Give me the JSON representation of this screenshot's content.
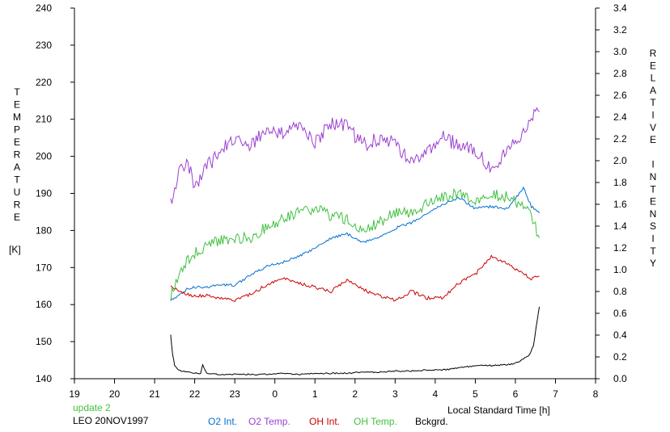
{
  "chart_data": {
    "type": "line",
    "title": "",
    "xlabel": "Local Standard Time [h]",
    "x_ticks": [
      "19",
      "20",
      "21",
      "22",
      "23",
      "0",
      "1",
      "2",
      "3",
      "4",
      "5",
      "6",
      "7",
      "8"
    ],
    "xlim_hours": [
      19,
      32
    ],
    "left_axis": {
      "label_letters": [
        "T",
        "E",
        "M",
        "P",
        "E",
        "R",
        "A",
        "T",
        "U",
        "R",
        "E"
      ],
      "unit": "[K]",
      "ylim": [
        140,
        240
      ],
      "ticks": [
        "140",
        "150",
        "160",
        "170",
        "180",
        "190",
        "200",
        "210",
        "220",
        "230",
        "240"
      ]
    },
    "right_axis": {
      "label_letters": [
        "R",
        "E",
        "L",
        "A",
        "T",
        "I",
        "V",
        "E",
        "",
        "I",
        "N",
        "T",
        "E",
        "N",
        "S",
        "I",
        "T",
        "Y"
      ],
      "ylim": [
        0.0,
        3.4
      ],
      "ticks": [
        "0.0",
        "0.2",
        "0.4",
        "0.6",
        "0.8",
        "1.0",
        "1.2",
        "1.4",
        "1.6",
        "1.8",
        "2.0",
        "2.2",
        "2.4",
        "2.6",
        "2.8",
        "3.0",
        "3.2",
        "3.4"
      ]
    },
    "series": [
      {
        "name": "O2 Int.",
        "axis": "right",
        "color": "#0070d0",
        "x": [
          21.4,
          21.6,
          21.8,
          22.0,
          22.3,
          22.6,
          23.0,
          23.4,
          23.8,
          24.2,
          24.6,
          25.0,
          25.4,
          25.8,
          26.2,
          26.6,
          27.0,
          27.4,
          27.8,
          28.2,
          28.6,
          29.0,
          29.4,
          29.8,
          30.2,
          30.4,
          30.6
        ],
        "y": [
          0.72,
          0.76,
          0.82,
          0.84,
          0.84,
          0.86,
          0.86,
          0.95,
          1.03,
          1.07,
          1.12,
          1.2,
          1.29,
          1.33,
          1.25,
          1.3,
          1.38,
          1.43,
          1.52,
          1.6,
          1.66,
          1.56,
          1.58,
          1.56,
          1.75,
          1.58,
          1.52
        ]
      },
      {
        "name": "O2 Temp.",
        "axis": "left",
        "color": "#9a40d0",
        "x": [
          21.4,
          21.6,
          21.8,
          22.0,
          22.3,
          22.6,
          23.0,
          23.4,
          23.8,
          24.2,
          24.6,
          25.0,
          25.4,
          25.8,
          26.2,
          26.6,
          27.0,
          27.4,
          27.8,
          28.2,
          28.6,
          29.0,
          29.4,
          29.8,
          30.2,
          30.4,
          30.6
        ],
        "y": [
          187,
          196,
          199,
          192,
          197,
          201,
          205,
          203,
          207,
          206,
          208,
          204,
          209,
          208,
          203,
          205,
          204,
          198,
          202,
          205,
          203,
          201,
          197,
          201,
          207,
          210,
          212
        ]
      },
      {
        "name": "OH Int.",
        "axis": "right",
        "color": "#cc0000",
        "x": [
          21.4,
          21.6,
          21.8,
          22.0,
          22.3,
          22.6,
          23.0,
          23.4,
          23.8,
          24.2,
          24.6,
          25.0,
          25.4,
          25.8,
          26.2,
          26.6,
          27.0,
          27.4,
          27.8,
          28.2,
          28.6,
          29.0,
          29.4,
          29.8,
          30.2,
          30.4,
          30.6
        ],
        "y": [
          0.85,
          0.8,
          0.78,
          0.76,
          0.76,
          0.74,
          0.72,
          0.78,
          0.86,
          0.92,
          0.88,
          0.84,
          0.8,
          0.9,
          0.82,
          0.76,
          0.72,
          0.8,
          0.74,
          0.74,
          0.88,
          0.96,
          1.12,
          1.06,
          0.96,
          0.92,
          0.94
        ]
      },
      {
        "name": "OH Temp.",
        "axis": "left",
        "color": "#40c040",
        "x": [
          21.4,
          21.6,
          21.8,
          22.0,
          22.3,
          22.6,
          23.0,
          23.4,
          23.8,
          24.2,
          24.6,
          25.0,
          25.4,
          25.8,
          26.2,
          26.6,
          27.0,
          27.4,
          27.8,
          28.2,
          28.6,
          29.0,
          29.4,
          29.8,
          30.2,
          30.4,
          30.6
        ],
        "y": [
          162,
          168,
          172,
          174,
          176,
          177,
          178,
          178,
          181,
          183,
          185,
          186,
          184,
          183,
          180,
          182,
          185,
          185,
          187,
          189,
          190,
          188,
          190,
          189,
          186,
          184,
          178
        ]
      },
      {
        "name": "Bckgrd.",
        "axis": "right",
        "color": "#000000",
        "x": [
          21.4,
          21.45,
          21.5,
          21.6,
          21.8,
          22.0,
          22.15,
          22.2,
          22.3,
          22.6,
          23.0,
          23.4,
          23.8,
          24.2,
          24.6,
          25.0,
          25.4,
          25.8,
          26.2,
          26.6,
          27.0,
          27.4,
          27.8,
          28.2,
          28.6,
          29.0,
          29.4,
          29.8,
          30.0,
          30.2,
          30.35,
          30.45,
          30.55,
          30.6
        ],
        "y": [
          0.4,
          0.22,
          0.12,
          0.08,
          0.06,
          0.05,
          0.05,
          0.13,
          0.05,
          0.04,
          0.04,
          0.04,
          0.04,
          0.05,
          0.04,
          0.05,
          0.05,
          0.05,
          0.06,
          0.06,
          0.07,
          0.07,
          0.08,
          0.08,
          0.1,
          0.12,
          0.12,
          0.13,
          0.14,
          0.18,
          0.22,
          0.3,
          0.55,
          0.66
        ]
      }
    ],
    "grid": false,
    "legend_placement": "bottom"
  },
  "footer": {
    "update": "update 2",
    "station": "LEO 20NOV1997"
  }
}
